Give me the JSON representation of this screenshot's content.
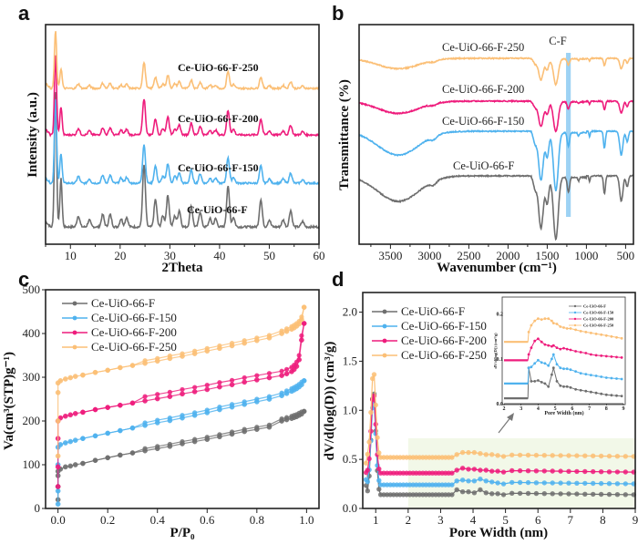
{
  "figure": {
    "colors": {
      "Ce-UiO-66-F": "#6e6e6e",
      "Ce-UiO-66-F-150": "#4fb2ee",
      "Ce-UiO-66-F-200": "#ee1c7c",
      "Ce-UiO-66-F-250": "#fbbf76",
      "cf_band": "#8ccaf2",
      "shade": "#f2f8e8"
    }
  },
  "chart_data": [
    {
      "panel": "a",
      "type": "line",
      "title": "",
      "xlabel": "2Theta",
      "ylabel": "Intensity (a.u.)",
      "xlim": [
        5,
        60
      ],
      "xticks": [
        10,
        20,
        30,
        40,
        50,
        60
      ],
      "yticks": [],
      "legend": "inline-labels",
      "peaks_2theta": [
        [
          7.0,
          1.0
        ],
        [
          8.1,
          0.35
        ],
        [
          11.6,
          0.08
        ],
        [
          13.8,
          0.05
        ],
        [
          16.5,
          0.09
        ],
        [
          18.0,
          0.09
        ],
        [
          20.2,
          0.06
        ],
        [
          21.3,
          0.07
        ],
        [
          24.8,
          0.45
        ],
        [
          27.1,
          0.2
        ],
        [
          28.6,
          0.08
        ],
        [
          29.6,
          0.23
        ],
        [
          31.0,
          0.08
        ],
        [
          31.9,
          0.12
        ],
        [
          34.3,
          0.15
        ],
        [
          36.1,
          0.11
        ],
        [
          38.1,
          0.06
        ],
        [
          39.2,
          0.06
        ],
        [
          41.7,
          0.3
        ],
        [
          42.8,
          0.07
        ],
        [
          48.3,
          0.2
        ],
        [
          50.0,
          0.05
        ],
        [
          52.8,
          0.05
        ],
        [
          54.3,
          0.12
        ],
        [
          56.7,
          0.04
        ]
      ],
      "series": [
        {
          "name": "Ce-UiO-66-F",
          "offset": 0.0,
          "scale": 1.0
        },
        {
          "name": "Ce-UiO-66-F-150",
          "offset": 1.0,
          "scale": 0.75
        },
        {
          "name": "Ce-UiO-66-F-200",
          "offset": 2.0,
          "scale": 0.7
        },
        {
          "name": "Ce-UiO-66-F-250",
          "offset": 3.0,
          "scale": 0.5
        }
      ],
      "labels": [
        "Ce-UiO-66-F-250",
        "Ce-UiO-66-F-200",
        "Ce-UiO-66-F-150",
        "Ce-UiO-66-F"
      ]
    },
    {
      "panel": "b",
      "type": "line",
      "title": "",
      "xlabel": "Wavenumber (cm⁻¹)",
      "ylabel": "Transmittance (%)",
      "xlim": [
        3900,
        400
      ],
      "xticks": [
        3500,
        3000,
        2500,
        2000,
        1500,
        1000,
        500
      ],
      "annotation": "C-F",
      "cf_band_range": [
        1260,
        1200
      ],
      "bands": [
        [
          3400,
          0.35,
          260
        ],
        [
          2950,
          0.05,
          40
        ],
        [
          1655,
          0.15,
          20
        ],
        [
          1580,
          0.7,
          30
        ],
        [
          1500,
          0.35,
          20
        ],
        [
          1390,
          0.85,
          30
        ],
        [
          1230,
          0.2,
          15
        ],
        [
          1100,
          0.05,
          10
        ],
        [
          960,
          0.08,
          8
        ],
        [
          770,
          0.25,
          12
        ],
        [
          555,
          0.35,
          20
        ],
        [
          480,
          0.15,
          15
        ]
      ],
      "series": [
        {
          "name": "Ce-UiO-66-F",
          "offset": 0.0,
          "depth": 1.0
        },
        {
          "name": "Ce-UiO-66-F-150",
          "offset": 1.0,
          "depth": 1.0
        },
        {
          "name": "Ce-UiO-66-F-200",
          "offset": 1.7,
          "depth": 0.7
        },
        {
          "name": "Ce-UiO-66-F-250",
          "offset": 2.6,
          "depth": 0.6
        }
      ],
      "labels": [
        "Ce-UiO-66-F-250",
        "Ce-UiO-66-F-200",
        "Ce-UiO-66-F-150",
        "Ce-UiO-66-F"
      ]
    },
    {
      "panel": "c",
      "type": "scatter",
      "title": "",
      "xlabel": "P/P₀",
      "ylabel": "Va(cm³(STP)g⁻¹)",
      "xlim": [
        -0.05,
        1.05
      ],
      "ylim": [
        0,
        500
      ],
      "xticks": [
        "0.0",
        "0.2",
        "0.4",
        "0.6",
        "0.8",
        "1.0"
      ],
      "yticks": [
        0,
        100,
        200,
        300,
        400,
        500
      ],
      "legend": "top-left",
      "x": [
        0.0,
        0.0,
        0.0,
        0.0,
        0.01,
        0.03,
        0.05,
        0.07,
        0.1,
        0.15,
        0.2,
        0.25,
        0.3,
        0.35,
        0.4,
        0.45,
        0.5,
        0.55,
        0.6,
        0.65,
        0.7,
        0.75,
        0.8,
        0.85,
        0.9,
        0.92,
        0.94,
        0.95,
        0.96,
        0.97,
        0.98,
        0.99
      ],
      "series": [
        {
          "name": "Ce-UiO-66-F",
          "adsorption": [
            20,
            50,
            75,
            85,
            90,
            95,
            97,
            100,
            103,
            110,
            116,
            122,
            127,
            132,
            137,
            142,
            148,
            153,
            158,
            164,
            170,
            176,
            181,
            186,
            200,
            203,
            206,
            208,
            210,
            213,
            216,
            222
          ],
          "desorption_offset": 5
        },
        {
          "name": "Ce-UiO-66-F-150",
          "adsorption": [
            10,
            40,
            100,
            140,
            146,
            150,
            153,
            156,
            160,
            166,
            172,
            178,
            184,
            190,
            196,
            201,
            207,
            213,
            219,
            226,
            232,
            238,
            244,
            250,
            258,
            263,
            268,
            271,
            274,
            278,
            283,
            292
          ],
          "desorption_offset": 6
        },
        {
          "name": "Ce-UiO-66-F-200",
          "adsorption": [
            50,
            95,
            160,
            200,
            207,
            211,
            214,
            217,
            220,
            226,
            231,
            236,
            241,
            246,
            251,
            256,
            262,
            267,
            272,
            278,
            283,
            289,
            294,
            299,
            304,
            308,
            313,
            318,
            325,
            340,
            385,
            423
          ],
          "desorption_offset": 10
        },
        {
          "name": "Ce-UiO-66-F-250",
          "adsorption": [
            120,
            200,
            265,
            287,
            292,
            296,
            299,
            302,
            305,
            311,
            316,
            322,
            327,
            332,
            337,
            343,
            348,
            354,
            360,
            366,
            372,
            378,
            384,
            390,
            400,
            405,
            410,
            413,
            417,
            422,
            432,
            460
          ],
          "desorption_offset": 6
        }
      ]
    },
    {
      "panel": "d",
      "type": "scatter",
      "title": "",
      "xlabel": "Pore Width (nm)",
      "ylabel": "dV/d(log(D)) (cm³/g)",
      "xlim": [
        0.6,
        9
      ],
      "ylim": [
        0,
        2.2
      ],
      "xticks": [
        1,
        2,
        3,
        4,
        5,
        6,
        7,
        8,
        9
      ],
      "yticks": [
        "0.0",
        "0.5",
        "1.0",
        "1.5",
        "2.0"
      ],
      "legend": "top-left",
      "series": [
        {
          "name": "Ce-UiO-66-F",
          "peak": 1.21,
          "base": 0.14,
          "mid": [
            0.19,
            0.17,
            0.17,
            0.16,
            0.19,
            0.16,
            0.15,
            0.15,
            0.14
          ]
        },
        {
          "name": "Ce-UiO-66-F-150",
          "peak": 1.1,
          "base": 0.24,
          "mid": [
            0.28,
            0.29,
            0.28,
            0.28,
            0.3,
            0.28,
            0.27,
            0.26,
            0.25
          ]
        },
        {
          "name": "Ce-UiO-66-F-200",
          "peak": 1.18,
          "base": 0.36,
          "mid": [
            0.39,
            0.41,
            0.4,
            0.4,
            0.39,
            0.39,
            0.38,
            0.38,
            0.37
          ]
        },
        {
          "name": "Ce-UiO-66-F-250",
          "peak": 1.4,
          "base": 0.52,
          "mid": [
            0.55,
            0.57,
            0.57,
            0.57,
            0.56,
            0.55,
            0.55,
            0.54,
            0.53
          ]
        }
      ],
      "inset": {
        "xlabel": "Pore Width (nm)",
        "ylabel": "dV/d(log(D)) (cm³/g)",
        "xlim": [
          2,
          9
        ],
        "ylim": [
          0,
          0.23
        ],
        "xticks": [
          2,
          3,
          4,
          5,
          6,
          7,
          8,
          9
        ],
        "yticks": [
          "0.0",
          "0.1",
          "0.2"
        ],
        "x": [
          3.45,
          3.6,
          3.8,
          4.0,
          4.2,
          4.4,
          4.6,
          4.8,
          4.9,
          5.1,
          5.3,
          5.5,
          5.7,
          5.9,
          6.2,
          6.5,
          6.8,
          7.1,
          7.4,
          7.7,
          8.0,
          8.3,
          8.6,
          8.9
        ],
        "series": [
          {
            "name": "Ce-UiO-66-F",
            "base": 0.012,
            "values": [
              0.08,
              0.05,
              0.05,
              0.052,
              0.048,
              0.045,
              0.038,
              0.065,
              0.08,
              0.05,
              0.04,
              0.038,
              0.038,
              0.036,
              0.032,
              0.03,
              0.028,
              0.026,
              0.024,
              0.022,
              0.02,
              0.019,
              0.018,
              0.017
            ]
          },
          {
            "name": "Ce-UiO-66-F-150",
            "base": 0.045,
            "values": [
              0.08,
              0.082,
              0.09,
              0.097,
              0.092,
              0.09,
              0.085,
              0.1,
              0.11,
              0.088,
              0.08,
              0.078,
              0.078,
              0.076,
              0.072,
              0.068,
              0.066,
              0.064,
              0.062,
              0.06,
              0.058,
              0.057,
              0.056,
              0.055
            ]
          },
          {
            "name": "Ce-UiO-66-F-200",
            "base": 0.097,
            "values": [
              0.11,
              0.125,
              0.14,
              0.145,
              0.138,
              0.132,
              0.13,
              0.128,
              0.13,
              0.125,
              0.122,
              0.124,
              0.122,
              0.12,
              0.117,
              0.115,
              0.113,
              0.11,
              0.108,
              0.107,
              0.106,
              0.105,
              0.104,
              0.103
            ]
          },
          {
            "name": "Ce-UiO-66-F-250",
            "base": 0.138,
            "values": [
              0.16,
              0.175,
              0.185,
              0.19,
              0.188,
              0.19,
              0.19,
              0.185,
              0.18,
              0.178,
              0.172,
              0.17,
              0.168,
              0.168,
              0.165,
              0.162,
              0.16,
              0.158,
              0.156,
              0.154,
              0.152,
              0.15,
              0.148,
              0.146
            ]
          }
        ]
      }
    }
  ],
  "panel_letters": [
    "a",
    "b",
    "c",
    "d"
  ]
}
